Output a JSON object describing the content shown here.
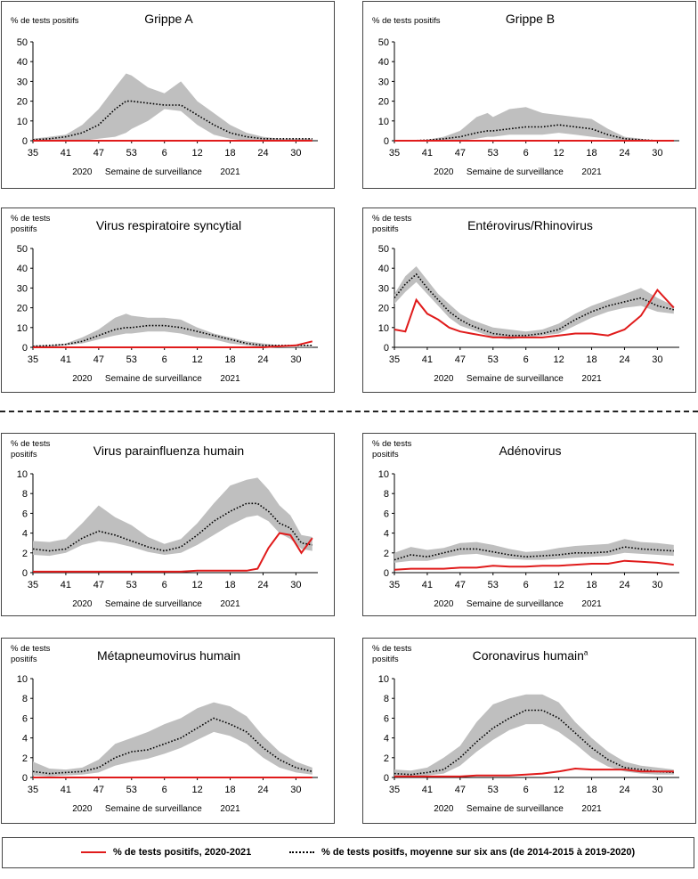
{
  "x_week_ticks": [
    "35",
    "41",
    "47",
    "53",
    "6",
    "12",
    "18",
    "24",
    "30"
  ],
  "x_year_labels": [
    "2020",
    "2021"
  ],
  "x_axis_label": "Semaine de surveillance",
  "legend": {
    "current_label": "% de tests positifs, 2020-2021",
    "average_label": "% de tests positfs, moyenne sur six ans (de 2014-2015 à 2019-2020)"
  },
  "colors": {
    "current": "#e01b1b",
    "average": "#000000",
    "range": "#bfbfbf"
  },
  "chart_data": [
    {
      "type": "area",
      "title": "Grippe A",
      "title_sup": "",
      "ylabel": "% de tests positifs",
      "ylim": [
        0,
        50
      ],
      "yticks": [
        0,
        10,
        20,
        30,
        40,
        50
      ],
      "x_weeks": [
        35,
        38,
        41,
        44,
        47,
        50,
        52,
        53,
        3,
        6,
        9,
        12,
        15,
        18,
        21,
        24,
        27,
        30,
        33
      ],
      "series": [
        {
          "name": "% de tests positifs, 2020-2021",
          "values": [
            0,
            0,
            0,
            0,
            0,
            0,
            0,
            0,
            0,
            0,
            0,
            0,
            0,
            0,
            0,
            0,
            0,
            0,
            0
          ]
        },
        {
          "name": "% de tests positfs, moyenne sur six ans (de 2014-2015 à 2019-2020)",
          "values": [
            0.5,
            1,
            2,
            4,
            8,
            16,
            20,
            20,
            19,
            18,
            18,
            13,
            8,
            4,
            2,
            1,
            1,
            1,
            1
          ]
        },
        {
          "name": "range_low",
          "values": [
            0,
            0,
            0,
            0,
            1,
            2,
            4,
            6,
            10,
            16,
            15,
            8,
            3,
            1,
            0,
            0,
            0,
            0,
            0
          ]
        },
        {
          "name": "range_high",
          "values": [
            1,
            2,
            3,
            8,
            16,
            27,
            34,
            33,
            27,
            24,
            30,
            20,
            14,
            8,
            4,
            2,
            1,
            1,
            1
          ]
        }
      ]
    },
    {
      "type": "area",
      "title": "Grippe B",
      "title_sup": "",
      "ylabel": "% de tests positifs",
      "ylim": [
        0,
        50
      ],
      "yticks": [
        0,
        10,
        20,
        30,
        40,
        50
      ],
      "x_weeks": [
        35,
        38,
        41,
        44,
        47,
        50,
        52,
        53,
        3,
        6,
        9,
        12,
        15,
        18,
        21,
        24,
        27,
        30,
        33
      ],
      "series": [
        {
          "name": "% de tests positifs, 2020-2021",
          "values": [
            0,
            0,
            0,
            0,
            0,
            0,
            0,
            0,
            0,
            0,
            0,
            0,
            0,
            0,
            0,
            0,
            0,
            0,
            0
          ]
        },
        {
          "name": "% de tests positfs, moyenne sur six ans (de 2014-2015 à 2019-2020)",
          "values": [
            0,
            0,
            0.3,
            1,
            2,
            4,
            5,
            5,
            6,
            7,
            7,
            8,
            7,
            6,
            3,
            1,
            0.5,
            0,
            0
          ]
        },
        {
          "name": "range_low",
          "values": [
            0,
            0,
            0,
            0,
            0,
            1,
            2,
            2,
            3,
            3,
            3,
            4,
            3,
            2,
            1,
            0,
            0,
            0,
            0
          ]
        },
        {
          "name": "range_high",
          "values": [
            0,
            0,
            0.5,
            2,
            5,
            12,
            14,
            12,
            16,
            17,
            14,
            13,
            12,
            11,
            6,
            2,
            1,
            0,
            0
          ]
        }
      ]
    },
    {
      "type": "area",
      "title": "Virus respiratoire syncytial",
      "title_sup": "",
      "ylabel": "% de tests positifs",
      "ylim": [
        0,
        50
      ],
      "yticks": [
        0,
        10,
        20,
        30,
        40,
        50
      ],
      "x_weeks": [
        35,
        38,
        41,
        44,
        47,
        50,
        52,
        53,
        3,
        6,
        9,
        12,
        15,
        18,
        21,
        24,
        27,
        30,
        33
      ],
      "series": [
        {
          "name": "% de tests positifs, 2020-2021",
          "values": [
            0,
            0,
            0,
            0,
            0,
            0,
            0,
            0,
            0,
            0,
            0,
            0,
            0,
            0,
            0,
            0,
            0.5,
            1,
            3
          ]
        },
        {
          "name": "% de tests positfs, moyenne sur six ans (de 2014-2015 à 2019-2020)",
          "values": [
            0.5,
            1,
            1.5,
            3,
            6,
            9,
            10,
            10,
            11,
            11,
            10,
            8,
            6,
            4,
            2,
            1,
            1,
            1,
            1
          ]
        },
        {
          "name": "range_low",
          "values": [
            0,
            0,
            1,
            2,
            4,
            6,
            7,
            7,
            8,
            8,
            7,
            5,
            4,
            2,
            1,
            0,
            0,
            0,
            0
          ]
        },
        {
          "name": "range_high",
          "values": [
            1,
            1,
            2,
            5,
            9,
            15,
            17,
            16,
            15,
            15,
            14,
            10,
            7,
            5,
            3,
            2,
            1,
            1,
            1
          ]
        }
      ]
    },
    {
      "type": "line",
      "title": "Entérovirus/Rhinovirus",
      "title_sup": "",
      "ylabel": "% de tests positifs",
      "ylim": [
        0,
        50
      ],
      "yticks": [
        0,
        10,
        20,
        30,
        40,
        50
      ],
      "x_weeks": [
        35,
        37,
        39,
        41,
        43,
        45,
        47,
        49,
        51,
        53,
        3,
        6,
        9,
        12,
        15,
        18,
        21,
        24,
        27,
        30,
        33
      ],
      "series": [
        {
          "name": "% de tests positifs, 2020-2021",
          "values": [
            9,
            8,
            24,
            17,
            14,
            10,
            8,
            7,
            6,
            5,
            5,
            5,
            5,
            6,
            7,
            7,
            6,
            9,
            16,
            29,
            20
          ]
        },
        {
          "name": "% de tests positfs, moyenne sur six ans (de 2014-2015 à 2019-2020)",
          "values": [
            25,
            32,
            37,
            30,
            24,
            18,
            14,
            11,
            9,
            7,
            6,
            6,
            7,
            9,
            14,
            18,
            21,
            23,
            25,
            21,
            19
          ]
        },
        {
          "name": "range_low",
          "values": [
            22,
            28,
            33,
            27,
            21,
            15,
            11,
            9,
            7,
            5,
            4,
            5,
            6,
            7,
            11,
            15,
            18,
            20,
            21,
            18,
            17
          ]
        },
        {
          "name": "range_high",
          "values": [
            27,
            36,
            41,
            34,
            27,
            22,
            17,
            14,
            12,
            10,
            9,
            8,
            9,
            12,
            17,
            21,
            24,
            27,
            30,
            25,
            21
          ]
        }
      ]
    },
    {
      "type": "line",
      "title": "Virus parainfluenza humain",
      "title_sup": "",
      "ylabel": "% de tests positifs",
      "ylim": [
        0,
        10
      ],
      "yticks": [
        0,
        2,
        4,
        6,
        8,
        10
      ],
      "x_weeks": [
        35,
        38,
        41,
        44,
        47,
        50,
        53,
        3,
        6,
        9,
        12,
        15,
        18,
        21,
        23,
        25,
        27,
        29,
        31,
        33
      ],
      "series": [
        {
          "name": "% de tests positifs, 2020-2021",
          "values": [
            0.1,
            0.1,
            0.1,
            0.1,
            0.1,
            0.1,
            0.1,
            0.1,
            0.1,
            0.1,
            0.2,
            0.2,
            0.2,
            0.2,
            0.4,
            2.5,
            4,
            3.8,
            2,
            3.5
          ]
        },
        {
          "name": "% de tests positfs, moyenne sur six ans (de 2014-2015 à 2019-2020)",
          "values": [
            2.4,
            2.2,
            2.4,
            3.5,
            4.2,
            3.8,
            3.2,
            2.6,
            2.2,
            2.6,
            3.8,
            5.2,
            6.2,
            7,
            7,
            6.2,
            5,
            4.5,
            3,
            2.8
          ]
        },
        {
          "name": "range_low",
          "values": [
            1.8,
            1.7,
            2,
            2.8,
            3.2,
            3,
            2.6,
            2.1,
            1.8,
            2,
            2.8,
            3.8,
            4.8,
            5.6,
            5.8,
            5.2,
            4,
            3.4,
            2.4,
            2.2
          ]
        },
        {
          "name": "range_high",
          "values": [
            3.2,
            3.1,
            3.4,
            5,
            6.8,
            5.6,
            4.8,
            3.6,
            2.9,
            3.4,
            5,
            7,
            8.8,
            9.4,
            9.6,
            8.4,
            6.8,
            5.8,
            3.8,
            3.6
          ]
        }
      ]
    },
    {
      "type": "line",
      "title": "Adénovirus",
      "title_sup": "",
      "ylabel": "% de tests positifs",
      "ylim": [
        0,
        10
      ],
      "yticks": [
        0,
        2,
        4,
        6,
        8,
        10
      ],
      "x_weeks": [
        35,
        38,
        41,
        44,
        47,
        50,
        53,
        3,
        6,
        9,
        12,
        15,
        18,
        21,
        24,
        27,
        30,
        33
      ],
      "series": [
        {
          "name": "% de tests positifs, 2020-2021",
          "values": [
            0.3,
            0.4,
            0.4,
            0.4,
            0.5,
            0.5,
            0.7,
            0.6,
            0.6,
            0.7,
            0.7,
            0.8,
            0.9,
            0.9,
            1.2,
            1.1,
            1,
            0.8
          ]
        },
        {
          "name": "% de tests positfs, moyenne sur six ans (de 2014-2015 à 2019-2020)",
          "values": [
            1.3,
            1.8,
            1.6,
            2,
            2.4,
            2.4,
            2.1,
            1.8,
            1.6,
            1.7,
            1.8,
            2,
            2,
            2.1,
            2.6,
            2.4,
            2.3,
            2.2
          ]
        },
        {
          "name": "range_low",
          "values": [
            1,
            1.2,
            1.2,
            1.5,
            1.8,
            1.9,
            1.6,
            1.4,
            1.3,
            1.3,
            1.4,
            1.5,
            1.6,
            1.7,
            2,
            1.9,
            1.8,
            1.7
          ]
        },
        {
          "name": "range_high",
          "values": [
            2,
            2.6,
            2.3,
            2.5,
            3,
            3.1,
            2.8,
            2.4,
            2.1,
            2.2,
            2.5,
            2.7,
            2.8,
            2.9,
            3.4,
            3.1,
            3,
            2.8
          ]
        }
      ]
    },
    {
      "type": "line",
      "title": "Métapneumovirus  humain",
      "title_sup": "",
      "ylabel": "% de tests positifs",
      "ylim": [
        0,
        10
      ],
      "yticks": [
        0,
        2,
        4,
        6,
        8,
        10
      ],
      "x_weeks": [
        35,
        38,
        41,
        44,
        47,
        50,
        53,
        3,
        6,
        9,
        12,
        15,
        18,
        21,
        24,
        27,
        30,
        33
      ],
      "series": [
        {
          "name": "% de tests positifs, 2020-2021",
          "values": [
            0,
            0,
            0,
            0,
            0,
            0,
            0,
            0,
            0,
            0,
            0,
            0,
            0,
            0,
            0,
            0,
            0,
            0
          ]
        },
        {
          "name": "% de tests positfs, moyenne sur six ans (de 2014-2015 à 2019-2020)",
          "values": [
            0.6,
            0.4,
            0.5,
            0.6,
            1,
            2,
            2.6,
            2.8,
            3.4,
            4,
            5,
            6,
            5.4,
            4.6,
            3,
            1.8,
            1,
            0.6
          ]
        },
        {
          "name": "range_low",
          "values": [
            0.2,
            0.1,
            0.2,
            0.3,
            0.5,
            1.2,
            1.6,
            1.9,
            2.4,
            3,
            3.8,
            4.6,
            4.2,
            3.4,
            2,
            1,
            0.5,
            0.3
          ]
        },
        {
          "name": "range_high",
          "values": [
            1.6,
            0.9,
            0.8,
            1,
            1.8,
            3.4,
            4,
            4.6,
            5.4,
            6,
            7,
            7.6,
            7.2,
            6.2,
            4.2,
            2.6,
            1.6,
            1
          ]
        }
      ]
    },
    {
      "type": "line",
      "title": "Coronavirus humain",
      "title_sup": "a",
      "ylabel": "% de tests positifs",
      "ylim": [
        0,
        10
      ],
      "yticks": [
        0,
        2,
        4,
        6,
        8,
        10
      ],
      "x_weeks": [
        35,
        38,
        41,
        44,
        47,
        50,
        53,
        3,
        6,
        9,
        12,
        15,
        18,
        21,
        24,
        27,
        30,
        33
      ],
      "series": [
        {
          "name": "% de tests positifs, 2020-2021",
          "values": [
            0.1,
            0.1,
            0.1,
            0.1,
            0.1,
            0.2,
            0.2,
            0.2,
            0.3,
            0.4,
            0.6,
            0.9,
            0.8,
            0.8,
            0.8,
            0.6,
            0.6,
            0.6
          ]
        },
        {
          "name": "% de tests positfs, moyenne sur six ans (de 2014-2015 à 2019-2020)",
          "values": [
            0.4,
            0.3,
            0.5,
            0.8,
            2,
            3.6,
            5,
            6,
            6.8,
            6.8,
            6,
            4.5,
            3,
            1.8,
            1,
            0.8,
            0.6,
            0.5
          ]
        },
        {
          "name": "range_low",
          "values": [
            0.1,
            0.1,
            0.2,
            0.4,
            1.2,
            2.6,
            3.8,
            4.8,
            5.4,
            5.4,
            4.6,
            3.4,
            2,
            1.1,
            0.6,
            0.4,
            0.3,
            0.3
          ]
        },
        {
          "name": "range_high",
          "values": [
            0.8,
            0.7,
            1,
            2,
            3.2,
            5.6,
            7.4,
            8,
            8.4,
            8.4,
            7.6,
            5.6,
            4,
            2.6,
            1.6,
            1.2,
            1,
            0.8
          ]
        }
      ]
    }
  ]
}
